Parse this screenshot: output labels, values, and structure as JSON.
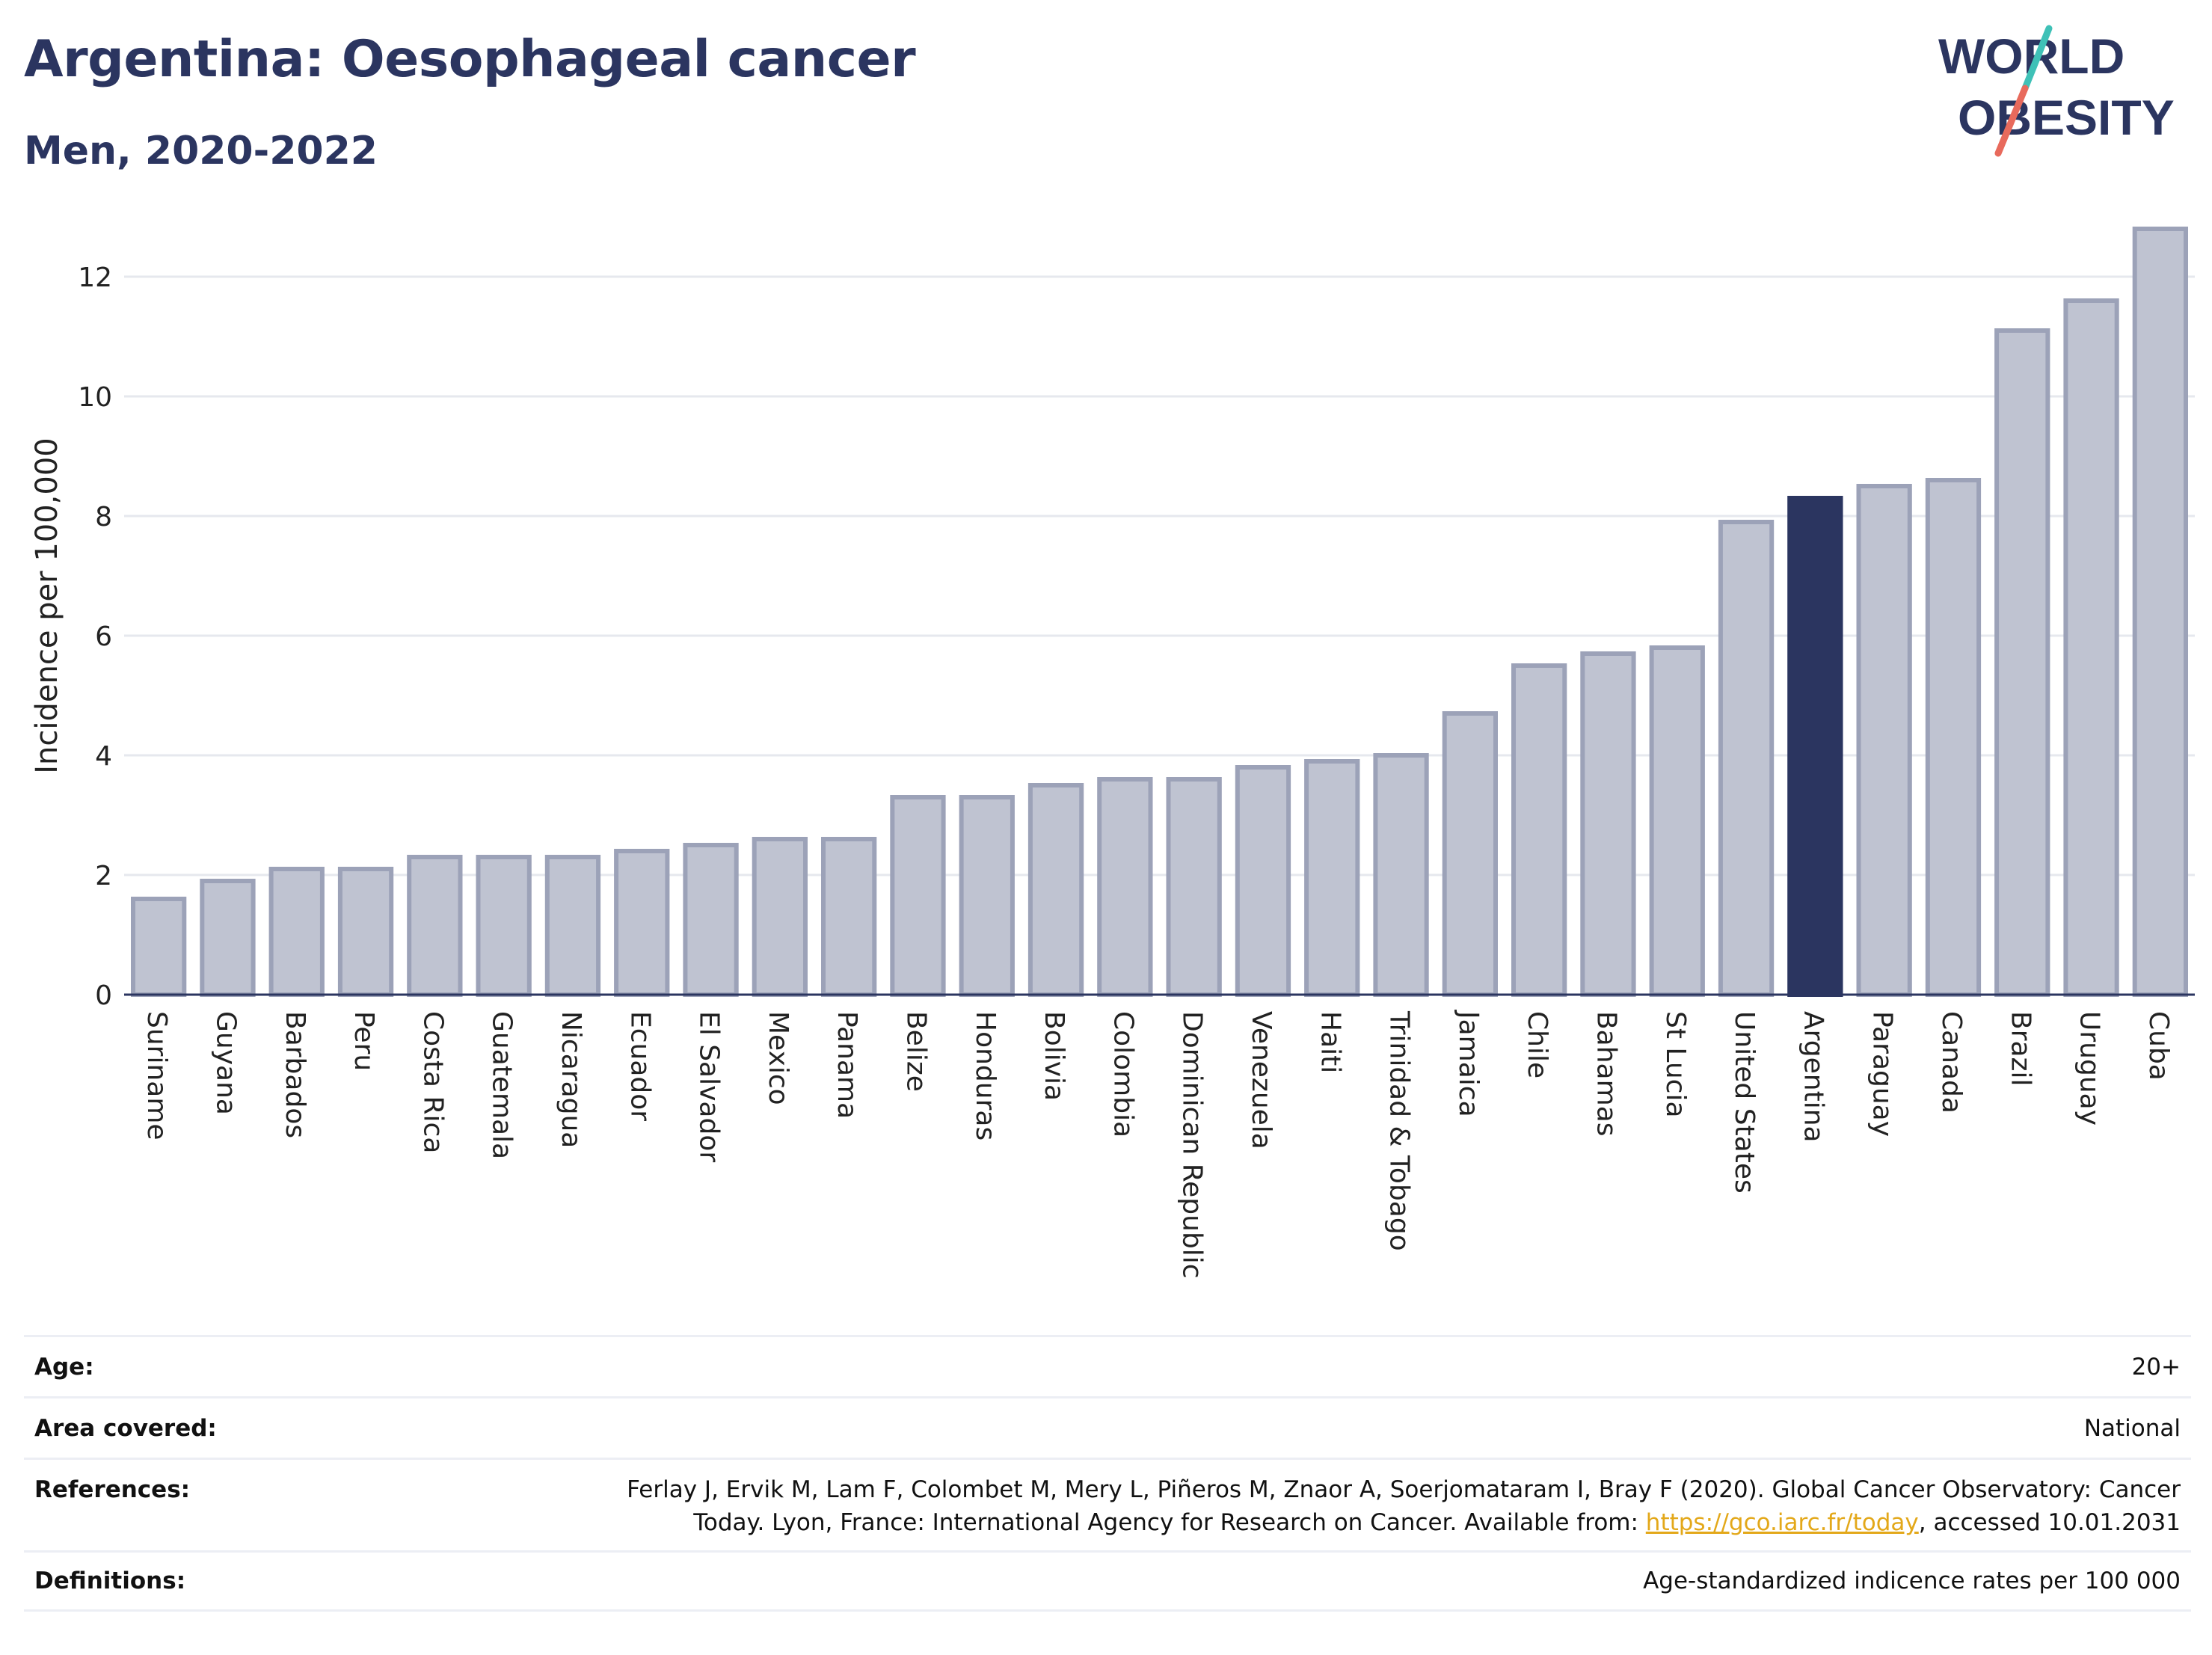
{
  "header": {
    "title": "Argentina: Oesophageal cancer",
    "subtitle": "Men, 2020-2022"
  },
  "logo": {
    "line1": "WORLD",
    "line2": "OBESITY",
    "accent_teal": "#3fc1b7",
    "accent_red": "#e86a5c"
  },
  "colors": {
    "bar": "#bfc3d1",
    "bar_edge": "#9ca2b8",
    "highlight": "#2b3560",
    "grid": "#e6e8ee",
    "axis": "#2b3560"
  },
  "chart_data": {
    "type": "bar",
    "title": "Argentina: Oesophageal cancer",
    "subtitle": "Men, 2020-2022",
    "xlabel": "",
    "ylabel": "Incidence per 100,000",
    "ylim": [
      0,
      13
    ],
    "yticks": [
      0,
      2,
      4,
      6,
      8,
      10,
      12
    ],
    "grid": true,
    "highlight": "Argentina",
    "categories": [
      "Suriname",
      "Guyana",
      "Barbados",
      "Peru",
      "Costa Rica",
      "Guatemala",
      "Nicaragua",
      "Ecuador",
      "El Salvador",
      "Mexico",
      "Panama",
      "Belize",
      "Honduras",
      "Bolivia",
      "Colombia",
      "Dominican Republic",
      "Venezuela",
      "Haiti",
      "Trinidad & Tobago",
      "Jamaica",
      "Chile",
      "Bahamas",
      "St Lucia",
      "United States",
      "Argentina",
      "Paraguay",
      "Canada",
      "Brazil",
      "Uruguay",
      "Cuba"
    ],
    "values": [
      1.6,
      1.9,
      2.1,
      2.1,
      2.3,
      2.3,
      2.3,
      2.4,
      2.5,
      2.6,
      2.6,
      3.3,
      3.3,
      3.5,
      3.6,
      3.6,
      3.8,
      3.9,
      4.0,
      4.7,
      5.5,
      5.7,
      5.8,
      7.9,
      8.3,
      8.5,
      8.6,
      11.1,
      11.6,
      12.8
    ]
  },
  "info": {
    "rows": [
      {
        "key": "Age:",
        "value": "20+"
      },
      {
        "key": "Area covered:",
        "value": "National"
      },
      {
        "key": "References:",
        "value_line1": "Ferlay J, Ervik M, Lam F, Colombet M, Mery L, Piñeros M, Znaor A, Soerjomataram I, Bray F (2020). Global Cancer Observatory: Cancer",
        "value_line2_pre": "Today. Lyon, France: International Agency for Research on Cancer. Available from: ",
        "value_link": "https://gco.iarc.fr/today",
        "value_line2_post": ", accessed 10.01.2031"
      },
      {
        "key": "Definitions:",
        "value": "Age-standardized indicence rates per 100 000"
      }
    ]
  }
}
